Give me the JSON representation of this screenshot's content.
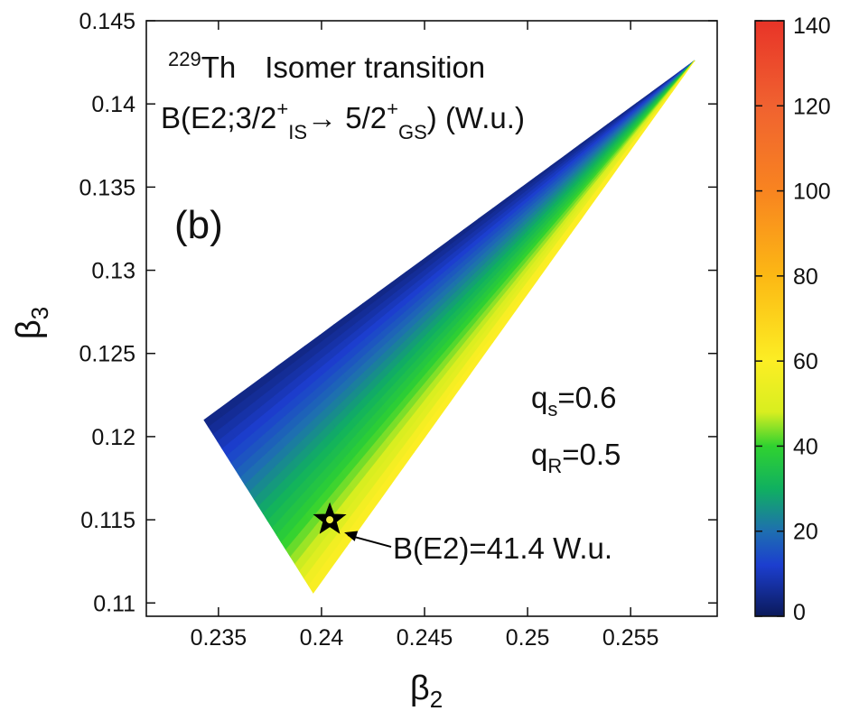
{
  "chart_data": {
    "type": "heatmap",
    "title_line1": {
      "mass_number": "229",
      "element": "Th",
      "description": "Isomer transition"
    },
    "title_line2": {
      "prefix": "B(E2;3/2",
      "sup1": "+",
      "sub1": "IS",
      "arrow": "→",
      "mid": " 5/2",
      "sup2": "+",
      "sub2": "GS",
      "suffix": ") (W.u.)"
    },
    "panel_label": "(b)",
    "xlabel": {
      "main": "β",
      "sub": "2"
    },
    "ylabel": {
      "main": "β",
      "sub": "3"
    },
    "x_ticks": [
      "0.235",
      "0.24",
      "0.245",
      "0.25",
      "0.255"
    ],
    "x_tick_values": [
      0.235,
      0.24,
      0.245,
      0.25,
      0.255
    ],
    "y_ticks": [
      "0.11",
      "0.115",
      "0.12",
      "0.125",
      "0.13",
      "0.135",
      "0.14",
      "0.145"
    ],
    "y_tick_values": [
      0.11,
      0.115,
      0.12,
      0.125,
      0.13,
      0.135,
      0.14,
      0.145
    ],
    "xlim": [
      0.2315,
      0.2592
    ],
    "ylim": [
      0.1092,
      0.145
    ],
    "colorbar": {
      "ticks": [
        "0",
        "20",
        "40",
        "60",
        "80",
        "100",
        "120",
        "140"
      ],
      "tick_values": [
        0,
        20,
        40,
        60,
        80,
        100,
        120,
        140
      ],
      "range": [
        0,
        140
      ],
      "colors": [
        [
          0,
          "#0b1a5a"
        ],
        [
          12,
          "#1c3ecf"
        ],
        [
          20,
          "#1e6fb0"
        ],
        [
          30,
          "#10b060"
        ],
        [
          40,
          "#30d230"
        ],
        [
          48,
          "#d8ee20"
        ],
        [
          60,
          "#fcee24"
        ],
        [
          80,
          "#fcb814"
        ],
        [
          100,
          "#f88420"
        ],
        [
          120,
          "#f06230"
        ],
        [
          140,
          "#e83428"
        ]
      ]
    },
    "region": {
      "vertices": [
        [
          0.2343,
          0.121
        ],
        [
          0.2396,
          0.1106
        ],
        [
          0.2581,
          0.1426
        ]
      ],
      "value_range": [
        0,
        60
      ]
    },
    "params": {
      "qs": {
        "main": "q",
        "sub": "s",
        "value": "=0.6"
      },
      "qr": {
        "main": "q",
        "sub": "R",
        "value": "=0.5"
      }
    },
    "annotation": {
      "text": "B(E2)=41.4 W.u.",
      "point": [
        0.2404,
        0.115
      ],
      "value": 41.4
    }
  }
}
